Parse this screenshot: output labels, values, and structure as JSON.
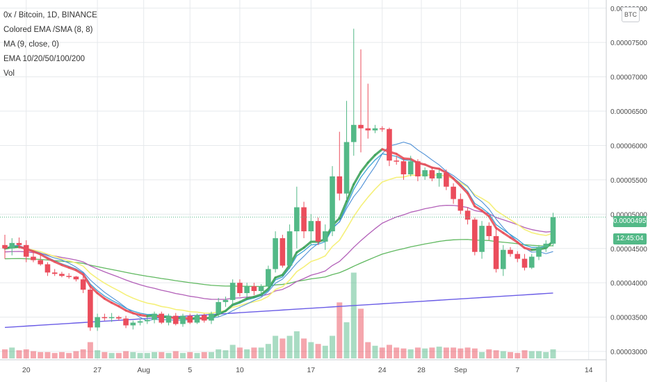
{
  "title": "0x / Bitcoin, 1D, BINANCE",
  "indicators": [
    "Colored EMA /SMA (8, 8)",
    "MA (9, close, 0)",
    "EMA 10/20/50/100/200",
    "Vol"
  ],
  "badge": "BTC",
  "last_price_label": "0.00004957",
  "countdown_label": "12:45:04",
  "colors": {
    "up": "#53b987",
    "down": "#eb4d5c",
    "grid": "#e6e9ec"
  },
  "chart_data": {
    "type": "candlestick",
    "yticks": [
      "0.00003000",
      "0.00003500",
      "0.00004000",
      "0.00004500",
      "0.00005000",
      "0.00005500",
      "0.00006000",
      "0.00006500",
      "0.00007000",
      "0.00007500",
      "0.00008000"
    ],
    "xticks": [
      "20",
      "27",
      "Aug",
      "5",
      "10",
      "17",
      "24",
      "28",
      "Sep",
      "7",
      "14"
    ],
    "ylim": [
      2.97e-05,
      8.21e-05
    ],
    "candles": [
      {
        "o": 4.55,
        "h": 4.7,
        "l": 4.35,
        "c": 4.5
      },
      {
        "o": 4.5,
        "h": 4.65,
        "l": 4.4,
        "c": 4.58
      },
      {
        "o": 4.58,
        "h": 4.66,
        "l": 4.5,
        "c": 4.55
      },
      {
        "o": 4.55,
        "h": 4.62,
        "l": 4.3,
        "c": 4.38
      },
      {
        "o": 4.38,
        "h": 4.45,
        "l": 4.3,
        "c": 4.33
      },
      {
        "o": 4.33,
        "h": 4.4,
        "l": 4.25,
        "c": 4.27
      },
      {
        "o": 4.27,
        "h": 4.3,
        "l": 4.1,
        "c": 4.15
      },
      {
        "o": 4.15,
        "h": 4.2,
        "l": 4.1,
        "c": 4.13
      },
      {
        "o": 4.13,
        "h": 4.16,
        "l": 4.08,
        "c": 4.1
      },
      {
        "o": 4.1,
        "h": 4.14,
        "l": 4.06,
        "c": 4.09
      },
      {
        "o": 4.09,
        "h": 4.1,
        "l": 4.02,
        "c": 4.05
      },
      {
        "o": 4.05,
        "h": 4.12,
        "l": 3.85,
        "c": 3.9
      },
      {
        "o": 3.9,
        "h": 3.95,
        "l": 3.3,
        "c": 3.35
      },
      {
        "o": 3.35,
        "h": 3.55,
        "l": 3.3,
        "c": 3.5
      },
      {
        "o": 3.5,
        "h": 3.55,
        "l": 3.45,
        "c": 3.49
      },
      {
        "o": 3.49,
        "h": 3.56,
        "l": 3.43,
        "c": 3.5
      },
      {
        "o": 3.5,
        "h": 3.52,
        "l": 3.45,
        "c": 3.48
      },
      {
        "o": 3.48,
        "h": 3.52,
        "l": 3.34,
        "c": 3.38
      },
      {
        "o": 3.38,
        "h": 3.45,
        "l": 3.32,
        "c": 3.42
      },
      {
        "o": 3.42,
        "h": 3.48,
        "l": 3.38,
        "c": 3.44
      },
      {
        "o": 3.44,
        "h": 3.5,
        "l": 3.4,
        "c": 3.46
      },
      {
        "o": 3.46,
        "h": 3.58,
        "l": 3.41,
        "c": 3.55
      },
      {
        "o": 3.55,
        "h": 3.58,
        "l": 3.4,
        "c": 3.42
      },
      {
        "o": 3.42,
        "h": 3.55,
        "l": 3.38,
        "c": 3.52
      },
      {
        "o": 3.52,
        "h": 3.56,
        "l": 3.38,
        "c": 3.4
      },
      {
        "o": 3.4,
        "h": 3.55,
        "l": 3.36,
        "c": 3.52
      },
      {
        "o": 3.52,
        "h": 3.55,
        "l": 3.4,
        "c": 3.42
      },
      {
        "o": 3.42,
        "h": 3.55,
        "l": 3.4,
        "c": 3.53
      },
      {
        "o": 3.53,
        "h": 3.55,
        "l": 3.42,
        "c": 3.45
      },
      {
        "o": 3.45,
        "h": 3.58,
        "l": 3.4,
        "c": 3.55
      },
      {
        "o": 3.55,
        "h": 3.78,
        "l": 3.5,
        "c": 3.72
      },
      {
        "o": 3.72,
        "h": 3.8,
        "l": 3.65,
        "c": 3.75
      },
      {
        "o": 3.75,
        "h": 4.05,
        "l": 3.68,
        "c": 4.0
      },
      {
        "o": 4.0,
        "h": 4.05,
        "l": 3.8,
        "c": 3.85
      },
      {
        "o": 3.85,
        "h": 4.0,
        "l": 3.78,
        "c": 3.95
      },
      {
        "o": 3.95,
        "h": 4.0,
        "l": 3.82,
        "c": 3.88
      },
      {
        "o": 3.88,
        "h": 3.98,
        "l": 3.82,
        "c": 3.95
      },
      {
        "o": 3.95,
        "h": 4.25,
        "l": 3.88,
        "c": 4.2
      },
      {
        "o": 4.2,
        "h": 4.75,
        "l": 4.15,
        "c": 4.65
      },
      {
        "o": 4.65,
        "h": 4.7,
        "l": 4.22,
        "c": 4.25
      },
      {
        "o": 4.25,
        "h": 4.85,
        "l": 4.2,
        "c": 4.75
      },
      {
        "o": 4.75,
        "h": 5.4,
        "l": 4.5,
        "c": 5.1
      },
      {
        "o": 5.1,
        "h": 5.18,
        "l": 4.65,
        "c": 4.75
      },
      {
        "o": 4.75,
        "h": 5.0,
        "l": 4.55,
        "c": 4.9
      },
      {
        "o": 4.9,
        "h": 4.95,
        "l": 4.55,
        "c": 4.6
      },
      {
        "o": 4.6,
        "h": 4.85,
        "l": 4.48,
        "c": 4.75
      },
      {
        "o": 4.75,
        "h": 5.7,
        "l": 4.68,
        "c": 5.55
      },
      {
        "o": 5.55,
        "h": 6.2,
        "l": 5.2,
        "c": 5.3
      },
      {
        "o": 5.3,
        "h": 6.65,
        "l": 5.2,
        "c": 6.05
      },
      {
        "o": 6.05,
        "h": 7.7,
        "l": 5.85,
        "c": 6.3
      },
      {
        "o": 6.3,
        "h": 7.4,
        "l": 5.9,
        "c": 6.25
      },
      {
        "o": 6.25,
        "h": 6.9,
        "l": 6.1,
        "c": 6.22
      },
      {
        "o": 6.22,
        "h": 6.3,
        "l": 6.18,
        "c": 6.25
      },
      {
        "o": 6.25,
        "h": 6.28,
        "l": 6.2,
        "c": 6.24
      },
      {
        "o": 6.24,
        "h": 6.26,
        "l": 5.7,
        "c": 5.78
      },
      {
        "o": 5.78,
        "h": 5.85,
        "l": 5.72,
        "c": 5.77
      },
      {
        "o": 5.77,
        "h": 5.82,
        "l": 5.5,
        "c": 5.58
      },
      {
        "o": 5.58,
        "h": 5.85,
        "l": 5.55,
        "c": 5.77
      },
      {
        "o": 5.77,
        "h": 5.8,
        "l": 5.48,
        "c": 5.55
      },
      {
        "o": 5.55,
        "h": 5.68,
        "l": 5.5,
        "c": 5.64
      },
      {
        "o": 5.64,
        "h": 5.68,
        "l": 5.48,
        "c": 5.52
      },
      {
        "o": 5.52,
        "h": 5.65,
        "l": 5.4,
        "c": 5.6
      },
      {
        "o": 5.6,
        "h": 5.65,
        "l": 5.35,
        "c": 5.4
      },
      {
        "o": 5.4,
        "h": 5.45,
        "l": 5.15,
        "c": 5.22
      },
      {
        "o": 5.22,
        "h": 5.3,
        "l": 5.0,
        "c": 5.05
      },
      {
        "o": 5.05,
        "h": 5.1,
        "l": 4.85,
        "c": 4.92
      },
      {
        "o": 4.92,
        "h": 4.95,
        "l": 4.4,
        "c": 4.45
      },
      {
        "o": 4.45,
        "h": 4.9,
        "l": 4.35,
        "c": 4.83
      },
      {
        "o": 4.83,
        "h": 4.88,
        "l": 4.62,
        "c": 4.68
      },
      {
        "o": 4.68,
        "h": 4.8,
        "l": 4.15,
        "c": 4.2
      },
      {
        "o": 4.2,
        "h": 4.55,
        "l": 4.1,
        "c": 4.48
      },
      {
        "o": 4.48,
        "h": 4.52,
        "l": 4.38,
        "c": 4.42
      },
      {
        "o": 4.42,
        "h": 4.46,
        "l": 4.3,
        "c": 4.35
      },
      {
        "o": 4.35,
        "h": 4.42,
        "l": 4.18,
        "c": 4.22
      },
      {
        "o": 4.22,
        "h": 4.42,
        "l": 4.2,
        "c": 4.38
      },
      {
        "o": 4.38,
        "h": 4.55,
        "l": 4.33,
        "c": 4.52
      },
      {
        "o": 4.52,
        "h": 4.62,
        "l": 4.45,
        "c": 4.57
      },
      {
        "o": 4.57,
        "h": 5.02,
        "l": 4.53,
        "c": 4.957
      }
    ],
    "volumes": [
      0.1,
      0.12,
      0.09,
      0.1,
      0.08,
      0.07,
      0.07,
      0.06,
      0.07,
      0.06,
      0.08,
      0.1,
      0.18,
      0.09,
      0.07,
      0.06,
      0.06,
      0.08,
      0.07,
      0.06,
      0.06,
      0.07,
      0.07,
      0.06,
      0.08,
      0.06,
      0.07,
      0.06,
      0.07,
      0.07,
      0.1,
      0.09,
      0.15,
      0.12,
      0.1,
      0.12,
      0.12,
      0.16,
      0.25,
      0.22,
      0.25,
      0.3,
      0.22,
      0.18,
      0.16,
      0.14,
      0.25,
      0.62,
      0.4,
      0.95,
      0.55,
      0.18,
      0.14,
      0.12,
      0.15,
      0.12,
      0.11,
      0.1,
      0.12,
      0.11,
      0.12,
      0.13,
      0.12,
      0.12,
      0.11,
      0.12,
      0.11,
      0.07,
      0.1,
      0.09,
      0.08,
      0.07,
      0.06,
      0.09,
      0.08,
      0.08,
      0.07,
      0.1
    ],
    "volume_scale": "relative"
  }
}
